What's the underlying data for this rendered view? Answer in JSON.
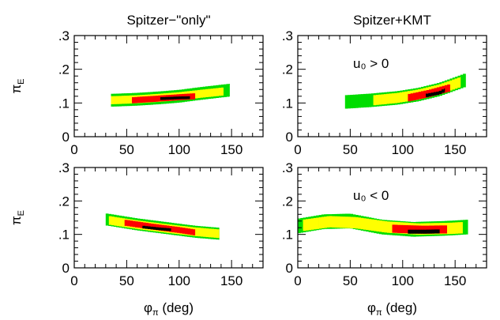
{
  "chart_data": [
    {
      "type": "heatmap",
      "title": "Spitzer−\"only\"",
      "annotation": "",
      "xlabel": "",
      "ylabel": "π",
      "ylabel_sub": "E",
      "xlim": [
        0,
        180
      ],
      "ylim": [
        0,
        0.3
      ],
      "xticks": [
        "0",
        "50",
        "100",
        "150"
      ],
      "yticks": [
        "0",
        ".1",
        ".2",
        ".3"
      ],
      "show_xticklabels": true,
      "show_yticklabels": true,
      "levels": [
        {
          "level": "green",
          "color": "#00dd00",
          "ridge": [
            [
              35,
              0.108
            ],
            [
              60,
              0.111
            ],
            [
              80,
              0.115
            ],
            [
              100,
              0.12
            ],
            [
              120,
              0.128
            ],
            [
              148,
              0.138
            ]
          ],
          "halfwidth": 0.019
        },
        {
          "level": "yellow",
          "color": "#ffff00",
          "ridge": [
            [
              35,
              0.108
            ],
            [
              60,
              0.111
            ],
            [
              80,
              0.115
            ],
            [
              100,
              0.12
            ],
            [
              120,
              0.127
            ],
            [
              142,
              0.134
            ]
          ],
          "halfwidth": 0.012
        },
        {
          "level": "red",
          "color": "#ff0000",
          "ridge": [
            [
              55,
              0.108
            ],
            [
              80,
              0.113
            ],
            [
              100,
              0.117
            ],
            [
              115,
              0.12
            ]
          ],
          "halfwidth": 0.009
        },
        {
          "level": "black",
          "color": "#000000",
          "ridge": [
            [
              82,
              0.113
            ],
            [
              98,
              0.115
            ],
            [
              110,
              0.116
            ]
          ],
          "halfwidth": 0.004
        }
      ]
    },
    {
      "type": "heatmap",
      "title": "Spitzer+KMT",
      "annotation": "u₀ > 0",
      "xlabel": "",
      "ylabel": "",
      "ylabel_sub": "",
      "xlim": [
        0,
        180
      ],
      "ylim": [
        0,
        0.3
      ],
      "xticks": [
        "0",
        "50",
        "100",
        "150"
      ],
      "yticks": [
        "0",
        ".1",
        ".2",
        ".3"
      ],
      "show_xticklabels": true,
      "show_yticklabels": true,
      "levels": [
        {
          "level": "green",
          "color": "#00dd00",
          "ridge": [
            [
              45,
              0.103
            ],
            [
              70,
              0.108
            ],
            [
              95,
              0.115
            ],
            [
              115,
              0.125
            ],
            [
              135,
              0.14
            ],
            [
              160,
              0.168
            ]
          ],
          "halfwidth": 0.02
        },
        {
          "level": "yellow",
          "color": "#ffff00",
          "ridge": [
            [
              72,
              0.108
            ],
            [
              95,
              0.115
            ],
            [
              115,
              0.125
            ],
            [
              135,
              0.14
            ],
            [
              155,
              0.162
            ]
          ],
          "halfwidth": 0.015
        },
        {
          "level": "red",
          "color": "#ff0000",
          "ridge": [
            [
              105,
              0.115
            ],
            [
              125,
              0.128
            ],
            [
              145,
              0.145
            ]
          ],
          "halfwidth": 0.011
        },
        {
          "level": "black",
          "color": "#000000",
          "ridge": [
            [
              122,
              0.122
            ],
            [
              135,
              0.13
            ],
            [
              140,
              0.138
            ]
          ],
          "halfwidth": 0.005
        }
      ]
    },
    {
      "type": "heatmap",
      "title": "",
      "annotation": "",
      "xlabel": "φ",
      "xlabel_sub": "π",
      "xlabel_rest": " (deg)",
      "ylabel": "π",
      "ylabel_sub": "E",
      "xlim": [
        0,
        180
      ],
      "ylim": [
        0,
        0.3
      ],
      "xticks": [
        "0",
        "50",
        "100",
        "150"
      ],
      "yticks": [
        "0",
        ".1",
        ".2",
        ".3"
      ],
      "show_xticklabels": true,
      "show_yticklabels": true,
      "levels": [
        {
          "level": "green",
          "color": "#00dd00",
          "ridge": [
            [
              30,
              0.145
            ],
            [
              60,
              0.13
            ],
            [
              90,
              0.118
            ],
            [
              115,
              0.108
            ],
            [
              138,
              0.102
            ]
          ],
          "halfwidth": 0.018
        },
        {
          "level": "yellow",
          "color": "#ffff00",
          "ridge": [
            [
              33,
              0.142
            ],
            [
              60,
              0.129
            ],
            [
              90,
              0.117
            ],
            [
              115,
              0.108
            ],
            [
              138,
              0.102
            ]
          ],
          "halfwidth": 0.013
        },
        {
          "level": "red",
          "color": "#ff0000",
          "ridge": [
            [
              48,
              0.135
            ],
            [
              75,
              0.123
            ],
            [
              100,
              0.113
            ],
            [
              115,
              0.106
            ]
          ],
          "halfwidth": 0.009
        },
        {
          "level": "black",
          "color": "#000000",
          "ridge": [
            [
              65,
              0.122
            ],
            [
              80,
              0.117
            ],
            [
              92,
              0.114
            ]
          ],
          "halfwidth": 0.004
        }
      ]
    },
    {
      "type": "heatmap",
      "title": "",
      "annotation": "u₀ < 0",
      "xlabel": "φ",
      "xlabel_sub": "π",
      "xlabel_rest": " (deg)",
      "ylabel": "",
      "ylabel_sub": "",
      "xlim": [
        0,
        180
      ],
      "ylim": [
        0,
        0.3
      ],
      "xticks": [
        "0",
        "50",
        "100",
        "150"
      ],
      "yticks": [
        "0",
        ".1",
        ".2",
        ".3"
      ],
      "show_xticklabels": true,
      "show_yticklabels": true,
      "levels": [
        {
          "level": "green",
          "color": "#00dd00",
          "ridge": [
            [
              0,
              0.125
            ],
            [
              25,
              0.138
            ],
            [
              50,
              0.14
            ],
            [
              80,
              0.122
            ],
            [
              110,
              0.115
            ],
            [
              140,
              0.118
            ],
            [
              162,
              0.122
            ]
          ],
          "halfwidth": 0.022
        },
        {
          "level": "yellow",
          "color": "#ffff00",
          "ridge": [
            [
              5,
              0.127
            ],
            [
              30,
              0.138
            ],
            [
              55,
              0.135
            ],
            [
              85,
              0.122
            ],
            [
              115,
              0.116
            ],
            [
              145,
              0.118
            ],
            [
              157,
              0.12
            ]
          ],
          "halfwidth": 0.017
        },
        {
          "level": "red",
          "color": "#ff0000",
          "ridge": [
            [
              90,
              0.117
            ],
            [
              120,
              0.114
            ],
            [
              142,
              0.115
            ]
          ],
          "halfwidth": 0.012
        },
        {
          "level": "black",
          "color": "#000000",
          "ridge": [
            [
              105,
              0.108
            ],
            [
              120,
              0.108
            ],
            [
              135,
              0.109
            ]
          ],
          "halfwidth": 0.006
        }
      ]
    }
  ]
}
